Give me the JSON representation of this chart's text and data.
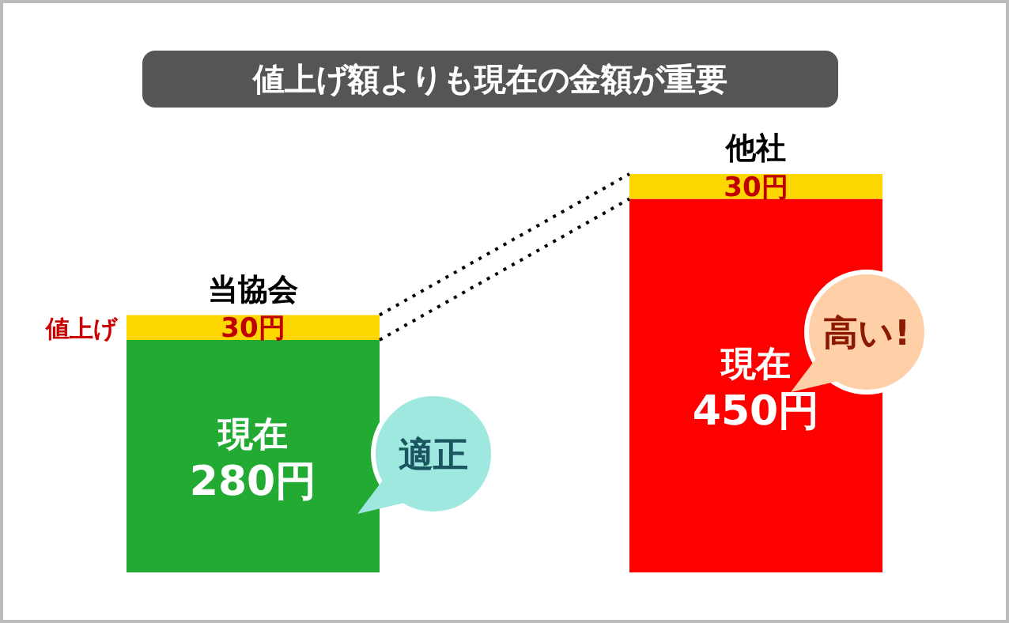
{
  "chart_data": {
    "type": "bar",
    "title": "値上げ額よりも現在の金額が重要",
    "categories": [
      "当協会",
      "他社"
    ],
    "stacked": true,
    "series": [
      {
        "colors": [
          "#22aa33",
          "#ff0000"
        ],
        "values": [
          280,
          450
        ],
        "value_labels": [
          "現在 280円",
          "現在 450円"
        ]
      },
      {
        "name": "値上げ",
        "color": "#ffd700",
        "values": [
          30,
          30
        ],
        "value_labels": [
          "30円",
          "30円"
        ]
      }
    ],
    "annotations": [
      "適正",
      "高い!"
    ]
  }
}
